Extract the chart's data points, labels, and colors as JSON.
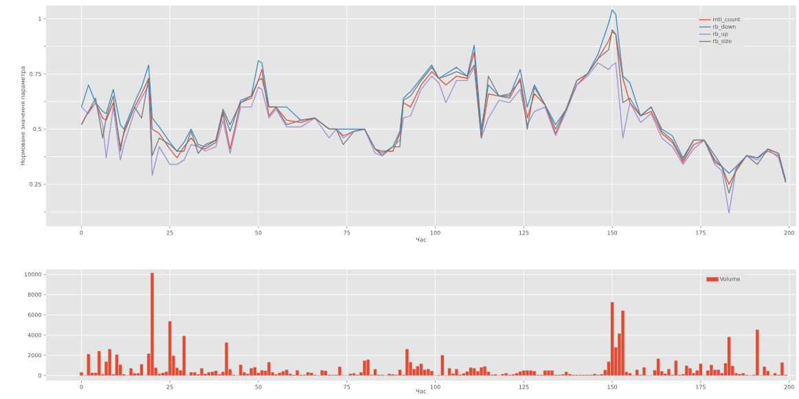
{
  "chart_data": [
    {
      "type": "line",
      "xlabel": "Час",
      "ylabel": "Нормоване значення параметра",
      "grid": true,
      "legend": "top right",
      "xlim": [
        -10,
        202
      ],
      "ylim": [
        0.06,
        1.06
      ],
      "xticks": [
        0,
        25,
        50,
        75,
        100,
        125,
        150,
        175,
        200
      ],
      "yticks": [
        {
          "value": 0.125,
          "label": null
        },
        0.25,
        {
          "value": 0.375,
          "label": null
        },
        0.5,
        {
          "value": 0.625,
          "label": null
        },
        0.75,
        {
          "value": 0.875,
          "label": null
        },
        1
      ],
      "x": [
        0,
        2,
        4,
        6,
        7,
        9,
        11,
        12,
        15,
        17,
        19,
        20,
        22,
        25,
        27,
        29,
        31,
        33,
        35,
        38,
        40,
        42,
        45,
        48,
        50,
        51,
        53,
        55,
        58,
        62,
        66,
        70,
        72,
        74,
        77,
        80,
        83,
        85,
        88,
        90,
        91,
        93,
        96,
        99,
        101,
        103,
        106,
        109,
        111,
        113,
        115,
        118,
        121,
        124,
        126,
        128,
        131,
        134,
        137,
        140,
        143,
        146,
        149,
        150,
        151,
        153,
        155,
        158,
        161,
        164,
        167,
        170,
        173,
        176,
        179,
        181,
        183,
        185,
        188,
        191,
        194,
        197,
        199
      ],
      "series": [
        {
          "name": "rnti_count",
          "color": "#e24a33",
          "values": [
            0.52,
            0.58,
            0.62,
            0.55,
            0.54,
            0.62,
            0.42,
            0.48,
            0.6,
            0.66,
            0.73,
            0.5,
            0.48,
            0.41,
            0.37,
            0.42,
            0.46,
            0.42,
            0.41,
            0.44,
            0.57,
            0.41,
            0.62,
            0.64,
            0.72,
            0.77,
            0.56,
            0.6,
            0.54,
            0.53,
            0.55,
            0.5,
            0.5,
            0.47,
            0.49,
            0.5,
            0.41,
            0.4,
            0.4,
            0.48,
            0.62,
            0.6,
            0.7,
            0.76,
            0.73,
            0.7,
            0.74,
            0.73,
            0.85,
            0.47,
            0.66,
            0.65,
            0.64,
            0.73,
            0.55,
            0.66,
            0.61,
            0.48,
            0.59,
            0.7,
            0.75,
            0.82,
            0.9,
            0.94,
            0.93,
            0.73,
            0.62,
            0.56,
            0.58,
            0.48,
            0.44,
            0.35,
            0.43,
            0.45,
            0.36,
            0.33,
            0.25,
            0.31,
            0.38,
            0.37,
            0.4,
            0.38,
            0.26
          ]
        },
        {
          "name": "rb_down",
          "color": "#348abd",
          "values": [
            0.6,
            0.7,
            0.62,
            0.58,
            0.57,
            0.68,
            0.52,
            0.5,
            0.62,
            0.69,
            0.79,
            0.55,
            0.51,
            0.44,
            0.4,
            0.44,
            0.5,
            0.43,
            0.42,
            0.45,
            0.58,
            0.49,
            0.63,
            0.65,
            0.81,
            0.8,
            0.6,
            0.6,
            0.6,
            0.54,
            0.55,
            0.5,
            0.5,
            0.5,
            0.5,
            0.5,
            0.41,
            0.39,
            0.42,
            0.49,
            0.64,
            0.67,
            0.73,
            0.79,
            0.73,
            0.75,
            0.78,
            0.74,
            0.88,
            0.5,
            0.7,
            0.65,
            0.65,
            0.77,
            0.6,
            0.7,
            0.61,
            0.52,
            0.59,
            0.72,
            0.75,
            0.84,
            0.98,
            1.04,
            1.02,
            0.74,
            0.71,
            0.56,
            0.6,
            0.5,
            0.47,
            0.37,
            0.45,
            0.45,
            0.38,
            0.33,
            0.3,
            0.33,
            0.38,
            0.37,
            0.41,
            0.39,
            0.27
          ]
        },
        {
          "name": "rb_up",
          "color": "#988ed5",
          "values": [
            0.6,
            0.57,
            0.62,
            0.52,
            0.37,
            0.6,
            0.36,
            0.43,
            0.58,
            0.64,
            0.7,
            0.29,
            0.42,
            0.34,
            0.34,
            0.36,
            0.43,
            0.42,
            0.4,
            0.42,
            0.54,
            0.39,
            0.6,
            0.6,
            0.69,
            0.68,
            0.55,
            0.59,
            0.51,
            0.51,
            0.55,
            0.46,
            0.5,
            0.46,
            0.49,
            0.5,
            0.39,
            0.38,
            0.42,
            0.45,
            0.55,
            0.56,
            0.68,
            0.74,
            0.71,
            0.62,
            0.72,
            0.72,
            0.78,
            0.46,
            0.55,
            0.63,
            0.62,
            0.68,
            0.52,
            0.58,
            0.6,
            0.47,
            0.58,
            0.7,
            0.74,
            0.8,
            0.77,
            0.79,
            0.8,
            0.46,
            0.62,
            0.53,
            0.57,
            0.46,
            0.42,
            0.34,
            0.41,
            0.45,
            0.34,
            0.31,
            0.12,
            0.32,
            0.38,
            0.36,
            0.41,
            0.37,
            0.26
          ]
        },
        {
          "name": "rb_size",
          "color": "#777777",
          "values": [
            0.52,
            0.58,
            0.64,
            0.46,
            0.55,
            0.65,
            0.4,
            0.49,
            0.6,
            0.55,
            0.73,
            0.38,
            0.46,
            0.43,
            0.4,
            0.4,
            0.49,
            0.39,
            0.43,
            0.45,
            0.59,
            0.52,
            0.62,
            0.65,
            0.72,
            0.73,
            0.6,
            0.6,
            0.52,
            0.54,
            0.55,
            0.5,
            0.5,
            0.43,
            0.49,
            0.5,
            0.41,
            0.38,
            0.42,
            0.42,
            0.63,
            0.65,
            0.72,
            0.78,
            0.73,
            0.74,
            0.76,
            0.74,
            0.79,
            0.46,
            0.74,
            0.65,
            0.66,
            0.72,
            0.5,
            0.69,
            0.61,
            0.5,
            0.59,
            0.72,
            0.75,
            0.82,
            0.86,
            0.95,
            0.93,
            0.62,
            0.64,
            0.56,
            0.6,
            0.49,
            0.45,
            0.36,
            0.45,
            0.45,
            0.35,
            0.33,
            0.21,
            0.32,
            0.38,
            0.34,
            0.41,
            0.39,
            0.26
          ]
        }
      ]
    },
    {
      "type": "bar",
      "xlabel": "Час",
      "grid": true,
      "legend": "top right",
      "xlim": [
        -10,
        202
      ],
      "ylim": [
        -500,
        10500
      ],
      "xticks": [
        0,
        25,
        50,
        75,
        100,
        125,
        150,
        175,
        200
      ],
      "yticks": [
        0,
        2000,
        4000,
        6000,
        8000,
        10000
      ],
      "x": [
        0,
        1,
        2,
        3,
        4,
        5,
        6,
        7,
        8,
        9,
        10,
        11,
        12,
        13,
        14,
        15,
        16,
        17,
        18,
        19,
        20,
        21,
        22,
        23,
        24,
        25,
        26,
        27,
        28,
        29,
        30,
        31,
        32,
        33,
        34,
        35,
        36,
        37,
        38,
        39,
        40,
        41,
        42,
        43,
        44,
        45,
        46,
        47,
        48,
        49,
        50,
        51,
        52,
        53,
        54,
        55,
        56,
        57,
        58,
        59,
        60,
        61,
        62,
        63,
        64,
        65,
        66,
        67,
        68,
        69,
        70,
        71,
        72,
        73,
        74,
        75,
        76,
        77,
        78,
        79,
        80,
        81,
        82,
        83,
        84,
        85,
        86,
        87,
        88,
        89,
        90,
        91,
        92,
        93,
        94,
        95,
        96,
        97,
        98,
        99,
        100,
        101,
        102,
        103,
        104,
        105,
        106,
        107,
        108,
        109,
        110,
        111,
        112,
        113,
        114,
        115,
        116,
        117,
        118,
        119,
        120,
        121,
        122,
        123,
        124,
        125,
        126,
        127,
        128,
        129,
        130,
        131,
        132,
        133,
        134,
        135,
        136,
        137,
        138,
        139,
        140,
        141,
        142,
        143,
        144,
        145,
        146,
        147,
        148,
        149,
        150,
        151,
        152,
        153,
        154,
        155,
        156,
        157,
        158,
        159,
        160,
        161,
        162,
        163,
        164,
        165,
        166,
        167,
        168,
        169,
        170,
        171,
        172,
        173,
        174,
        175,
        176,
        177,
        178,
        179,
        180,
        181,
        182,
        183,
        184,
        185,
        186,
        187,
        188,
        189,
        190,
        191,
        192,
        193,
        194,
        195,
        196,
        197,
        198,
        199
      ],
      "series": [
        {
          "name": "Volume",
          "color": "#e24a33",
          "values": [
            300,
            0,
            2100,
            250,
            250,
            2400,
            100,
            1350,
            2600,
            100,
            2050,
            1050,
            100,
            0,
            700,
            200,
            200,
            1100,
            0,
            2150,
            10150,
            750,
            150,
            250,
            350,
            5350,
            1950,
            750,
            500,
            3900,
            0,
            300,
            300,
            100,
            700,
            150,
            300,
            350,
            450,
            100,
            350,
            3250,
            600,
            50,
            0,
            1050,
            300,
            150,
            700,
            800,
            250,
            500,
            450,
            1300,
            300,
            100,
            250,
            400,
            550,
            150,
            50,
            500,
            50,
            50,
            300,
            250,
            50,
            0,
            500,
            450,
            50,
            50,
            50,
            850,
            0,
            0,
            150,
            200,
            50,
            300,
            1450,
            1550,
            50,
            600,
            50,
            50,
            0,
            150,
            100,
            50,
            550,
            50,
            2600,
            1300,
            620,
            900,
            1150,
            550,
            620,
            430,
            0,
            30,
            2000,
            0,
            700,
            170,
            620,
            70,
            190,
            380,
            770,
            700,
            400,
            790,
            880,
            360,
            50,
            100,
            0,
            120,
            210,
            50,
            100,
            210,
            380,
            480,
            480,
            480,
            410,
            50,
            50,
            480,
            480,
            480,
            50,
            50,
            100,
            340,
            120,
            50,
            50,
            50,
            50,
            50,
            50,
            140,
            50,
            120,
            530,
            1350,
            7250,
            2780,
            4140,
            6410,
            340,
            210,
            0,
            550,
            50,
            790,
            0,
            0,
            500,
            1650,
            400,
            170,
            620,
            50,
            1460,
            50,
            120,
            960,
            700,
            210,
            480,
            1150,
            0,
            480,
            1030,
            550,
            550,
            210,
            1200,
            3800,
            930,
            210,
            120,
            210,
            50,
            0,
            50,
            4520,
            0,
            860,
            430,
            0,
            210,
            50,
            1270,
            50
          ]
        }
      ]
    }
  ]
}
